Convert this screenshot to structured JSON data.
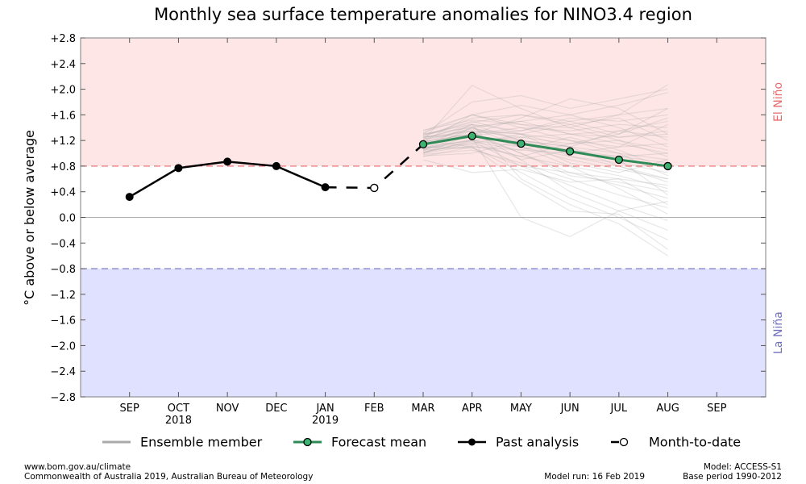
{
  "footer": {
    "url": "www.bom.gov.au/climate",
    "copyright": "Commonwealth of Australia 2019, Australian Bureau of Meteorology",
    "model_run": "Model run: 16 Feb 2019",
    "model": "Model: ACCESS-S1",
    "base_period": "Base period 1990-2012"
  },
  "colors": {
    "el_nino_fill": "#ffe6e6",
    "la_nina_fill": "#e0e0ff",
    "el_nino_line": "#e96a6a",
    "la_nina_line": "#6f6fbd",
    "el_nino_text": "#e96a6a",
    "la_nina_text": "#6f6fbd",
    "forecast_mean": "#2e8b57",
    "forecast_marker": "#3cb371",
    "ensemble": "#a9a9a9",
    "past": "#000000"
  },
  "chart_data": {
    "type": "line",
    "title": "Monthly sea surface temperature anomalies for NINO3.4 region",
    "ylabel": "°C above or below average",
    "ylim": [
      -2.8,
      2.8
    ],
    "yticks": [
      "+2.8",
      "+2.4",
      "+2.0",
      "+1.6",
      "+1.2",
      "+0.8",
      "+0.4",
      "0.0",
      "−0.4",
      "−0.8",
      "−1.2",
      "−1.6",
      "−2.0",
      "−2.4",
      "−2.8"
    ],
    "ytick_values": [
      2.8,
      2.4,
      2.0,
      1.6,
      1.2,
      0.8,
      0.4,
      0.0,
      -0.4,
      -0.8,
      -1.2,
      -1.6,
      -2.0,
      -2.4,
      -2.8
    ],
    "categories": [
      "SEP",
      "OCT",
      "NOV",
      "DEC",
      "JAN",
      "FEB",
      "MAR",
      "APR",
      "MAY",
      "JUN",
      "JUL",
      "AUG",
      "SEP"
    ],
    "year_labels": [
      {
        "index": 1,
        "label": "2018"
      },
      {
        "index": 4,
        "label": "2019"
      }
    ],
    "x_range": [
      -1,
      13
    ],
    "thresholds": {
      "el_nino": 0.8,
      "la_nina": -0.8
    },
    "zones": {
      "el_nino": "El Niño",
      "la_nina": "La Niña"
    },
    "legend": [
      {
        "key": "ensemble",
        "label": "Ensemble member"
      },
      {
        "key": "forecast",
        "label": "Forecast mean"
      },
      {
        "key": "past",
        "label": "Past analysis"
      },
      {
        "key": "mtd",
        "label": "Month-to-date"
      }
    ],
    "past_analysis": {
      "x": [
        0,
        1,
        2,
        3,
        4
      ],
      "values": [
        0.32,
        0.77,
        0.87,
        0.8,
        0.47
      ]
    },
    "month_to_date": {
      "x": [
        5
      ],
      "values": [
        0.46
      ]
    },
    "forecast_mean": {
      "x": [
        6,
        7,
        8,
        9,
        10,
        11
      ],
      "values": [
        1.14,
        1.27,
        1.15,
        1.03,
        0.9,
        0.8
      ]
    },
    "ensemble_members": [
      [
        1.14,
        1.27,
        1.15,
        1.03,
        0.9,
        0.8
      ],
      [
        1.2,
        2.06,
        1.7,
        1.4,
        1.6,
        2.07
      ],
      [
        1.3,
        1.8,
        1.9,
        1.7,
        1.85,
        2.0
      ],
      [
        1.05,
        1.4,
        1.5,
        1.6,
        1.75,
        1.95
      ],
      [
        1.25,
        1.55,
        1.6,
        1.5,
        1.6,
        1.7
      ],
      [
        1.1,
        1.45,
        1.35,
        1.55,
        1.5,
        1.6
      ],
      [
        1.35,
        1.6,
        1.45,
        1.3,
        1.35,
        1.5
      ],
      [
        1.18,
        1.3,
        1.4,
        1.35,
        1.45,
        1.4
      ],
      [
        1.0,
        1.2,
        1.25,
        1.3,
        1.25,
        1.3
      ],
      [
        1.22,
        1.35,
        1.3,
        1.2,
        1.1,
        1.15
      ],
      [
        0.95,
        1.1,
        1.05,
        1.0,
        0.95,
        1.0
      ],
      [
        1.15,
        1.25,
        1.2,
        1.05,
        0.95,
        0.85
      ],
      [
        1.3,
        1.4,
        1.2,
        1.1,
        1.0,
        0.9
      ],
      [
        1.08,
        1.2,
        1.1,
        0.95,
        0.85,
        0.7
      ],
      [
        1.12,
        1.3,
        1.1,
        0.9,
        0.75,
        0.6
      ],
      [
        1.28,
        1.5,
        1.3,
        1.1,
        0.8,
        0.55
      ],
      [
        1.02,
        1.15,
        0.95,
        0.8,
        0.65,
        0.45
      ],
      [
        1.18,
        1.3,
        1.0,
        0.7,
        0.5,
        0.3
      ],
      [
        0.98,
        1.05,
        0.85,
        0.6,
        0.35,
        0.15
      ],
      [
        1.1,
        1.2,
        0.8,
        0.5,
        0.2,
        -0.05
      ],
      [
        1.25,
        1.35,
        0.9,
        0.4,
        0.1,
        -0.2
      ],
      [
        1.05,
        1.1,
        0.7,
        0.3,
        0.0,
        -0.35
      ],
      [
        0.9,
        0.7,
        0.75,
        0.55,
        0.6,
        0.5
      ],
      [
        1.2,
        1.1,
        0.55,
        0.1,
        0.05,
        -0.5
      ],
      [
        1.15,
        1.25,
        0.0,
        -0.3,
        0.1,
        0.25
      ],
      [
        1.3,
        1.45,
        0.6,
        0.2,
        -0.1,
        -0.6
      ],
      [
        1.0,
        1.3,
        1.55,
        1.85,
        1.7,
        1.3
      ],
      [
        1.18,
        1.6,
        1.75,
        1.6,
        1.4,
        1.1
      ],
      [
        1.08,
        1.15,
        1.3,
        1.45,
        1.55,
        1.2
      ],
      [
        1.22,
        1.45,
        1.2,
        0.85,
        0.7,
        0.9
      ],
      [
        1.12,
        1.35,
        1.25,
        1.15,
        1.2,
        1.05
      ],
      [
        1.02,
        1.18,
        1.05,
        1.25,
        1.05,
        0.75
      ],
      [
        1.32,
        1.6,
        1.4,
        1.2,
        1.0,
        0.65
      ],
      [
        1.06,
        1.22,
        0.9,
        1.05,
        0.9,
        0.35
      ],
      [
        1.16,
        1.4,
        1.1,
        0.8,
        0.45,
        0.05
      ],
      [
        1.26,
        1.28,
        1.35,
        1.5,
        1.3,
        1.55
      ],
      [
        0.96,
        1.0,
        1.2,
        1.1,
        1.35,
        1.25
      ],
      [
        1.36,
        1.52,
        1.45,
        1.4,
        1.2,
        0.95
      ],
      [
        1.04,
        1.32,
        1.0,
        0.65,
        0.55,
        0.4
      ],
      [
        1.14,
        1.26,
        1.18,
        1.0,
        1.1,
        1.45
      ],
      [
        1.24,
        1.42,
        1.5,
        1.3,
        1.15,
        1.0
      ],
      [
        1.0,
        1.12,
        0.95,
        1.15,
        1.3,
        1.7
      ],
      [
        1.2,
        1.38,
        1.3,
        0.95,
        0.8,
        0.6
      ],
      [
        1.1,
        1.08,
        0.8,
        0.7,
        0.6,
        0.2
      ],
      [
        1.28,
        1.48,
        1.6,
        1.45,
        1.25,
        1.35
      ]
    ]
  }
}
